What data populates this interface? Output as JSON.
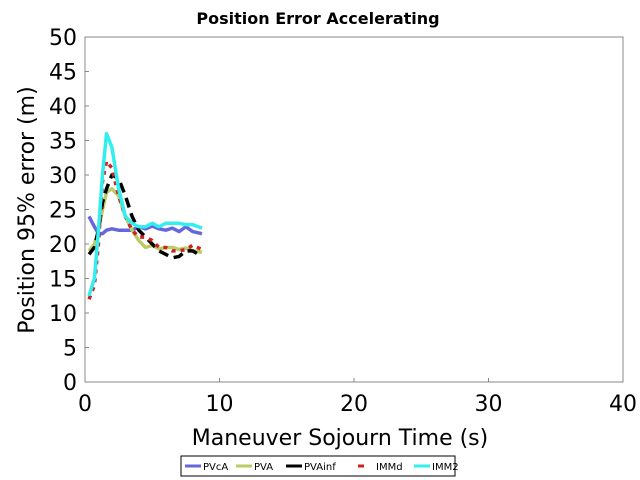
{
  "chart_data": {
    "type": "line",
    "title": "Position Error Accelerating",
    "xlabel": "Maneuver Sojourn Time (s)",
    "ylabel": "Position 95% error (m)",
    "xlim": [
      0,
      40
    ],
    "ylim": [
      0,
      50
    ],
    "xticks": [
      "0",
      "10",
      "20",
      "30",
      "40"
    ],
    "yticks": [
      "0",
      "5",
      "10",
      "15",
      "20",
      "25",
      "30",
      "35",
      "40",
      "45",
      "50"
    ],
    "grid": false,
    "legend_position": "bottom-center",
    "x": [
      0.3,
      0.7,
      1.0,
      1.3,
      1.6,
      2.0,
      2.5,
      3,
      3.5,
      4,
      4.5,
      5,
      5.5,
      6,
      6.5,
      7,
      7.5,
      8,
      8.7
    ],
    "series": [
      {
        "name": "PVcA",
        "color": "#6666dd",
        "dash": "",
        "values": [
          24,
          22.5,
          21.5,
          21.5,
          22,
          22.2,
          22,
          22,
          22,
          22.5,
          22.2,
          22.6,
          22.2,
          22,
          22.3,
          21.8,
          22.5,
          21.8,
          21.5
        ]
      },
      {
        "name": "PVA",
        "color": "#bbcc66",
        "dash": "",
        "values": [
          19,
          20,
          22,
          25,
          27.5,
          28,
          27,
          24,
          22,
          20.5,
          19.5,
          19.8,
          19.3,
          19.5,
          19.5,
          19.2,
          19.4,
          19,
          18.8
        ]
      },
      {
        "name": "PVAinf",
        "color": "#000000",
        "dash": "10,6",
        "values": [
          18.5,
          19.5,
          22,
          26,
          28,
          30,
          29.5,
          27,
          24,
          22,
          21,
          20,
          19,
          18.5,
          18,
          18.2,
          19,
          19,
          18.2
        ]
      },
      {
        "name": "IMMd",
        "color": "#cc2222",
        "dash": "4,5",
        "values": [
          12,
          14,
          20,
          29,
          32,
          31,
          27,
          24,
          22,
          21,
          21,
          20.5,
          19.5,
          19.5,
          19,
          19,
          19.2,
          19.8,
          19.2
        ]
      },
      {
        "name": "IMM2",
        "color": "#33eeee",
        "dash": "",
        "values": [
          12.5,
          15,
          22,
          30,
          36,
          34,
          28,
          24,
          23,
          22.5,
          22.5,
          23,
          22.5,
          23,
          23,
          23,
          22.8,
          22.8,
          22.3
        ]
      }
    ]
  }
}
